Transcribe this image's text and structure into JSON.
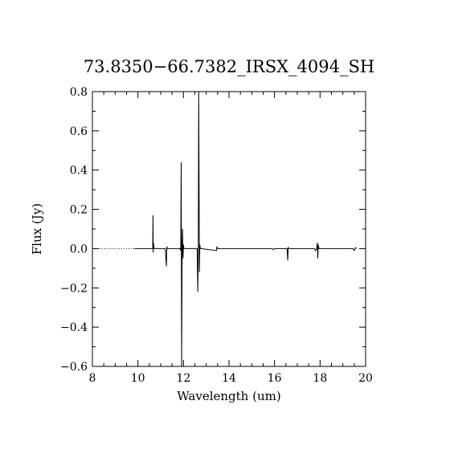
{
  "chart_data": {
    "type": "line",
    "title": "73.8350−66.7382_IRSX_4094_SH",
    "xlabel": "Wavelength (um)",
    "ylabel": "Flux (Jy)",
    "xlim": [
      8,
      20
    ],
    "ylim": [
      -0.6,
      0.8
    ],
    "xticks": [
      8,
      10,
      12,
      14,
      16,
      18,
      20
    ],
    "xtick_labels": [
      "8",
      "10",
      "12",
      "14",
      "16",
      "18",
      "20"
    ],
    "yticks": [
      -0.6,
      -0.4,
      -0.2,
      0.0,
      0.2,
      0.4,
      0.6,
      0.8
    ],
    "ytick_labels": [
      "−0.6",
      "−0.4",
      "−0.2",
      "0.0",
      "0.2",
      "0.4",
      "0.6",
      "0.8"
    ],
    "grid": false,
    "series": [
      {
        "style": "dotted",
        "x": [
          8.1,
          9.85
        ],
        "y": [
          0.0,
          0.0
        ]
      },
      {
        "style": "solid",
        "x": [
          9.85,
          10.65,
          10.66,
          10.67,
          10.68,
          10.7,
          10.72,
          11.2,
          11.25,
          11.27,
          11.3,
          11.85,
          11.88,
          11.9,
          11.92,
          11.94,
          11.96,
          11.98,
          12.0,
          12.02,
          12.6,
          12.63,
          12.65,
          12.67,
          12.7,
          12.72,
          12.74,
          12.8,
          13.45,
          13.47,
          13.5,
          15.9,
          15.95,
          16.0,
          16.55,
          16.58,
          16.6,
          16.65,
          17.75,
          17.8,
          17.85,
          17.88,
          17.9,
          17.92,
          17.95,
          18.0,
          19.45,
          19.5,
          19.55,
          19.6
        ],
        "y": [
          0.0,
          0.0,
          0.17,
          -0.02,
          0.03,
          0.01,
          0.0,
          0.0,
          -0.09,
          0.01,
          0.0,
          0.0,
          -0.01,
          0.44,
          -0.6,
          0.0,
          0.1,
          -0.05,
          0.02,
          0.0,
          0.0,
          -0.22,
          0.0,
          0.8,
          -0.12,
          0.02,
          0.0,
          0.0,
          -0.01,
          0.01,
          0.0,
          0.0,
          -0.005,
          0.0,
          0.0,
          -0.06,
          0.005,
          0.0,
          0.0,
          -0.01,
          0.0,
          0.03,
          -0.05,
          0.02,
          0.0,
          0.0,
          0.0,
          -0.01,
          0.005,
          0.0
        ]
      }
    ]
  }
}
